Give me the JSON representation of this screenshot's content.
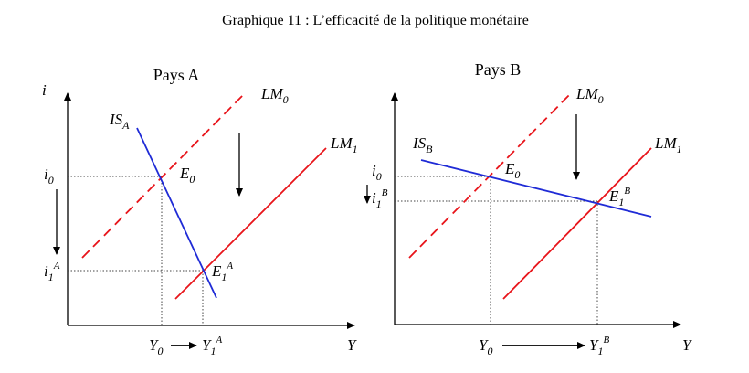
{
  "title": "Graphique 11 : L’efficacité de la politique monétaire",
  "panel_a": {
    "title": "Pays A",
    "y_axis": "i",
    "x_axis": "Y",
    "is": {
      "main": "IS",
      "sub": "A"
    },
    "lm0": {
      "main": "LM",
      "sub": "0"
    },
    "lm1": {
      "main": "LM",
      "sub": "1"
    },
    "e0": {
      "main": "E",
      "sub": "0"
    },
    "e1": {
      "main": "E",
      "sub": "1",
      "sup": "A"
    },
    "i0": {
      "main": "i",
      "sub": "0"
    },
    "i1": {
      "main": "i",
      "sub": "1",
      "sup": "A"
    },
    "y0": {
      "main": "Y",
      "sub": "0"
    },
    "y1": {
      "main": "Y",
      "sub": "1",
      "sup": "A"
    }
  },
  "panel_b": {
    "title": "Pays B",
    "x_axis": "Y",
    "is": {
      "main": "IS",
      "sub": "B"
    },
    "lm0": {
      "main": "LM",
      "sub": "0"
    },
    "lm1": {
      "main": "LM",
      "sub": "1"
    },
    "e0": {
      "main": "E",
      "sub": "0"
    },
    "e1": {
      "main": "E",
      "sub": "1",
      "sup": "B"
    },
    "i0": {
      "main": "i",
      "sub": "0"
    },
    "i1": {
      "main": "i",
      "sub": "1",
      "sup": "B"
    },
    "y0": {
      "main": "Y",
      "sub": "0"
    },
    "y1": {
      "main": "Y",
      "sub": "1",
      "sup": "B"
    }
  },
  "colors": {
    "is": "#1f2bd6",
    "lm": "#e8141a",
    "axis": "#000000",
    "guide": "#444444"
  }
}
